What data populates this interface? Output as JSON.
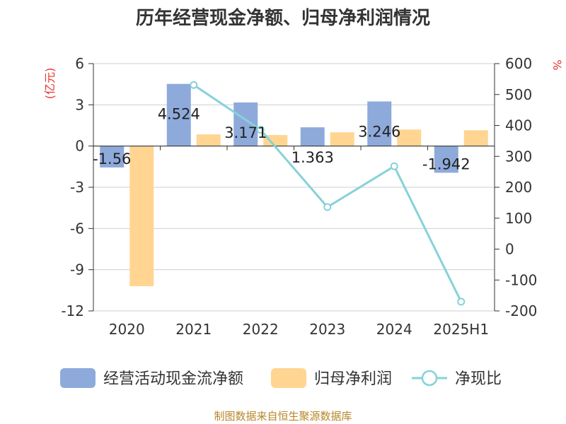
{
  "chart_data": {
    "type": "bar",
    "title": "历年经营现金净额、归母净利润情况",
    "categories": [
      "2020",
      "2021",
      "2022",
      "2023",
      "2024",
      "2025H1"
    ],
    "y_left": {
      "unit": "(亿元)",
      "ticks": [
        6,
        3,
        0,
        -3,
        -6,
        -9,
        -12
      ],
      "ylim": [
        -12,
        6
      ]
    },
    "y_right": {
      "unit": "%",
      "ticks": [
        600,
        500,
        400,
        300,
        200,
        100,
        0,
        -100,
        -200
      ],
      "ylim": [
        -200,
        600
      ]
    },
    "series": [
      {
        "name": "经营活动现金流净额",
        "type": "bar",
        "axis": "left",
        "color": "#8eaadb",
        "values": [
          -1.56,
          4.524,
          3.171,
          1.363,
          3.246,
          -1.942
        ],
        "labels": [
          "-1.56",
          "4.524",
          "3.171",
          "1.363",
          "3.246",
          "-1.942"
        ]
      },
      {
        "name": "归母净利润",
        "type": "bar",
        "axis": "left",
        "color": "#ffd591",
        "values": [
          -10.2,
          0.85,
          0.8,
          1.0,
          1.2,
          1.15
        ]
      },
      {
        "name": "净现比",
        "type": "line",
        "axis": "right",
        "color": "#86d2d9",
        "values": [
          null,
          531,
          386,
          136,
          268,
          -170
        ]
      }
    ],
    "grid": true,
    "legend_position": "bottom"
  },
  "source": "制图数据来自恒生聚源数据库"
}
